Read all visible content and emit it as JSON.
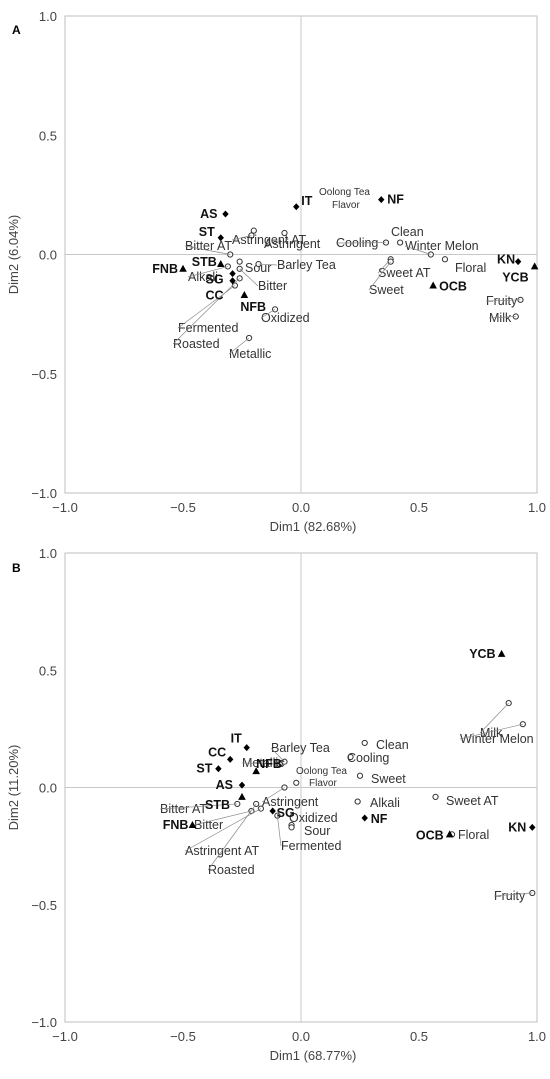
{
  "chart_data": [
    {
      "type": "scatter",
      "panel": "A",
      "xlabel": "Dim1 (82.68%)",
      "ylabel": "Dim2 (6.04%)",
      "xlim": [
        -1.0,
        1.0
      ],
      "ylim": [
        -1.0,
        1.0
      ],
      "x_ticks": [
        "−1.0",
        "−0.5",
        "0.0",
        "0.5",
        "1.0"
      ],
      "y_ticks": [
        "−1.0",
        "−0.5",
        "0.0",
        "0.5",
        "1.0"
      ],
      "zero_lines": true,
      "samples": [
        {
          "name": "AS",
          "x": -0.32,
          "y": 0.17,
          "marker": "diamond"
        },
        {
          "name": "IT",
          "x": -0.02,
          "y": 0.2,
          "marker": "diamond"
        },
        {
          "name": "NF",
          "x": 0.34,
          "y": 0.23,
          "marker": "diamond"
        },
        {
          "name": "ST",
          "x": -0.34,
          "y": 0.07,
          "marker": "diamond"
        },
        {
          "name": "STB",
          "x": -0.34,
          "y": -0.04,
          "marker": "triangle"
        },
        {
          "name": "FNB",
          "x": -0.5,
          "y": -0.06,
          "marker": "triangle"
        },
        {
          "name": "SG",
          "x": -0.29,
          "y": -0.08,
          "marker": "diamond"
        },
        {
          "name": "CC",
          "x": -0.29,
          "y": -0.11,
          "marker": "diamond"
        },
        {
          "name": "NFB",
          "x": -0.24,
          "y": -0.17,
          "marker": "triangle"
        },
        {
          "name": "KN",
          "x": 0.92,
          "y": -0.03,
          "marker": "diamond"
        },
        {
          "name": "YCB",
          "x": 0.99,
          "y": -0.05,
          "marker": "triangle"
        },
        {
          "name": "OCB",
          "x": 0.56,
          "y": -0.13,
          "marker": "triangle"
        }
      ],
      "attributes": [
        {
          "name": "Astringent AT",
          "x": -0.21,
          "y": 0.08
        },
        {
          "name": "Oolong Tea Flavor",
          "x": -0.07,
          "y": 0.09
        },
        {
          "name": "Astringent",
          "x": -0.2,
          "y": 0.1
        },
        {
          "name": "Bitter AT",
          "x": -0.3,
          "y": 0.0
        },
        {
          "name": "Sour",
          "x": -0.26,
          "y": -0.03
        },
        {
          "name": "Alkali",
          "x": -0.31,
          "y": -0.05
        },
        {
          "name": "Barley Tea",
          "x": -0.18,
          "y": -0.04
        },
        {
          "name": "Bitter",
          "x": -0.26,
          "y": -0.06
        },
        {
          "name": "Fermented",
          "x": -0.28,
          "y": -0.13
        },
        {
          "name": "Roasted",
          "x": -0.26,
          "y": -0.1
        },
        {
          "name": "Oxidized",
          "x": -0.11,
          "y": -0.23
        },
        {
          "name": "Metallic",
          "x": -0.22,
          "y": -0.35
        },
        {
          "name": "Clean",
          "x": 0.42,
          "y": 0.05
        },
        {
          "name": "Cooling",
          "x": 0.36,
          "y": 0.05
        },
        {
          "name": "Winter Melon",
          "x": 0.55,
          "y": 0.0
        },
        {
          "name": "Sweet AT",
          "x": 0.38,
          "y": -0.02
        },
        {
          "name": "Sweet",
          "x": 0.38,
          "y": -0.03
        },
        {
          "name": "Floral",
          "x": 0.61,
          "y": -0.02
        },
        {
          "name": "Fruity",
          "x": 0.93,
          "y": -0.19
        },
        {
          "name": "Milk",
          "x": 0.91,
          "y": -0.26
        }
      ]
    },
    {
      "type": "scatter",
      "panel": "B",
      "xlabel": "Dim1 (68.77%)",
      "ylabel": "Dim2 (11.20%)",
      "xlim": [
        -1.0,
        1.0
      ],
      "ylim": [
        -1.0,
        1.0
      ],
      "x_ticks": [
        "−1.0",
        "−0.5",
        "0.0",
        "0.5",
        "1.0"
      ],
      "y_ticks": [
        "−1.0",
        "−0.5",
        "0.0",
        "0.5",
        "1.0"
      ],
      "zero_lines": true,
      "samples": [
        {
          "name": "YCB",
          "x": 0.85,
          "y": 0.57,
          "marker": "triangle"
        },
        {
          "name": "IT",
          "x": -0.23,
          "y": 0.17,
          "marker": "diamond"
        },
        {
          "name": "CC",
          "x": -0.3,
          "y": 0.12,
          "marker": "diamond"
        },
        {
          "name": "ST",
          "x": -0.35,
          "y": 0.08,
          "marker": "diamond"
        },
        {
          "name": "NFB",
          "x": -0.19,
          "y": 0.07,
          "marker": "triangle"
        },
        {
          "name": "AS",
          "x": -0.25,
          "y": 0.01,
          "marker": "diamond"
        },
        {
          "name": "STB",
          "x": -0.25,
          "y": -0.04,
          "marker": "triangle"
        },
        {
          "name": "FNB",
          "x": -0.46,
          "y": -0.16,
          "marker": "triangle"
        },
        {
          "name": "SG",
          "x": -0.12,
          "y": -0.1,
          "marker": "diamond"
        },
        {
          "name": "NF",
          "x": 0.27,
          "y": -0.13,
          "marker": "diamond"
        },
        {
          "name": "OCB",
          "x": 0.63,
          "y": -0.2,
          "marker": "triangle"
        },
        {
          "name": "KN",
          "x": 0.98,
          "y": -0.17,
          "marker": "diamond"
        }
      ],
      "attributes": [
        {
          "name": "Milk",
          "x": 0.88,
          "y": 0.36
        },
        {
          "name": "Winter Melon",
          "x": 0.94,
          "y": 0.27
        },
        {
          "name": "Clean",
          "x": 0.27,
          "y": 0.19
        },
        {
          "name": "Cooling",
          "x": 0.21,
          "y": 0.13
        },
        {
          "name": "Barley Tea",
          "x": -0.07,
          "y": 0.11
        },
        {
          "name": "Metallic",
          "x": -0.09,
          "y": 0.1
        },
        {
          "name": "Oolong Tea Flavor",
          "x": -0.02,
          "y": 0.02
        },
        {
          "name": "Sweet",
          "x": 0.25,
          "y": 0.05
        },
        {
          "name": "Astringent",
          "x": -0.07,
          "y": 0.0
        },
        {
          "name": "Alkali",
          "x": 0.24,
          "y": -0.06
        },
        {
          "name": "Sweet AT",
          "x": 0.57,
          "y": -0.04
        },
        {
          "name": "Floral",
          "x": 0.64,
          "y": -0.2
        },
        {
          "name": "Bitter AT",
          "x": -0.27,
          "y": -0.07
        },
        {
          "name": "Bitter",
          "x": -0.21,
          "y": -0.1
        },
        {
          "name": "Oxidized",
          "x": -0.04,
          "y": -0.16
        },
        {
          "name": "Sour",
          "x": -0.04,
          "y": -0.17
        },
        {
          "name": "Fermented",
          "x": -0.1,
          "y": -0.12
        },
        {
          "name": "Astringent AT",
          "x": -0.17,
          "y": -0.09
        },
        {
          "name": "Roasted",
          "x": -0.19,
          "y": -0.07
        },
        {
          "name": "Fruity",
          "x": 0.98,
          "y": -0.45
        }
      ]
    }
  ]
}
